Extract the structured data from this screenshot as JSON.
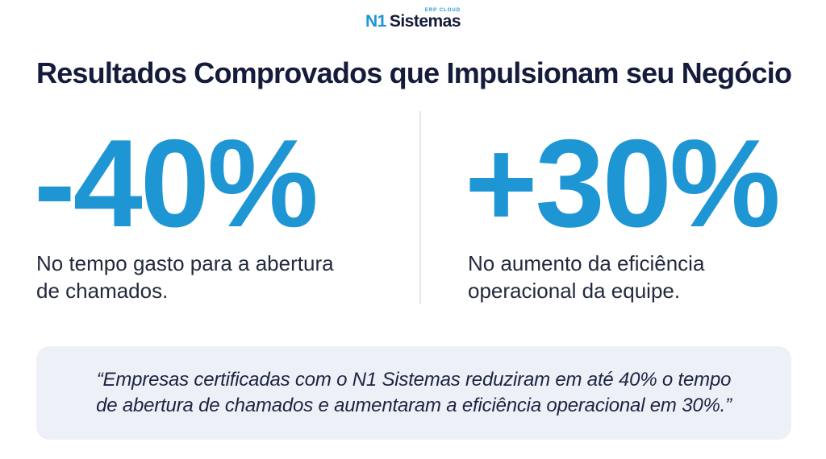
{
  "brand": {
    "logo_n1": "N1",
    "logo_name": "Sistemas",
    "logo_tagline": "ERP CLOUD"
  },
  "header": {
    "title": "Resultados Comprovados que Impulsionam seu Negócio"
  },
  "stats": [
    {
      "value": "-40%",
      "description_line1": "No tempo gasto para a abertura",
      "description_line2": "de chamados."
    },
    {
      "value": "+30%",
      "description_line1": "No aumento da eficiência",
      "description_line2": "operacional da equipe."
    }
  ],
  "quote": {
    "line1": "“Empresas certificadas com o N1 Sistemas reduziram em até 40% o tempo",
    "line2": "de abertura de chamados e aumentaram a eficiência operacional em 30%.”"
  },
  "colors": {
    "accent_blue": "#1E96D4",
    "navy": "#151C3B",
    "body_text": "#232A3D",
    "quote_bg": "#EDF0F6",
    "divider": "#E3E6EA"
  }
}
